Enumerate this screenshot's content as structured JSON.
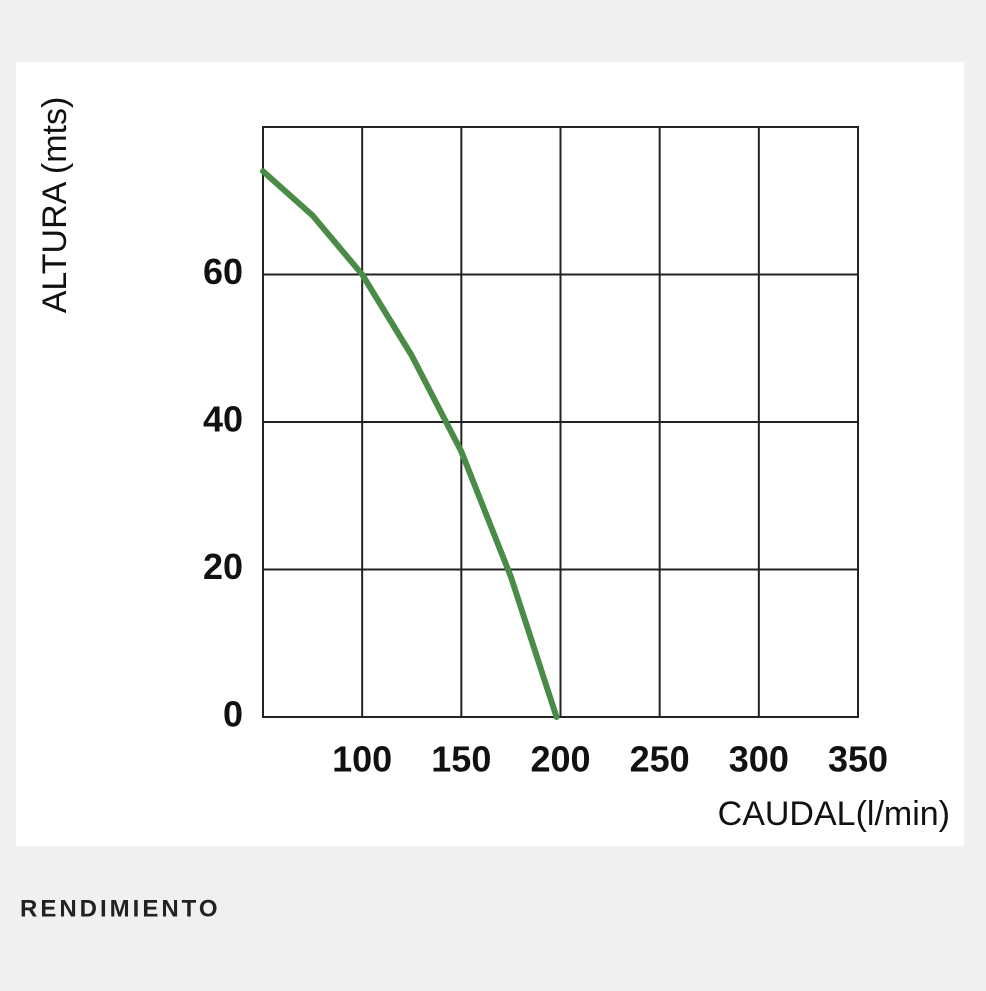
{
  "chart_data": {
    "type": "line",
    "x_label": "CAUDAL(l/min)",
    "y_label": "ALTURA (mts)",
    "series": [
      {
        "color": "#4a8c47",
        "x": [
          50,
          75,
          100,
          125,
          150,
          175,
          198
        ],
        "values": [
          74,
          68,
          60,
          49,
          36,
          19,
          0
        ]
      }
    ],
    "xlim": [
      50,
      350
    ],
    "xticks": [
      100,
      150,
      200,
      250,
      300,
      350
    ],
    "ylim": [
      0,
      80
    ],
    "yticks": [
      0,
      20,
      40,
      60
    ],
    "grid": true
  },
  "caption": "RENDIMIENTO"
}
